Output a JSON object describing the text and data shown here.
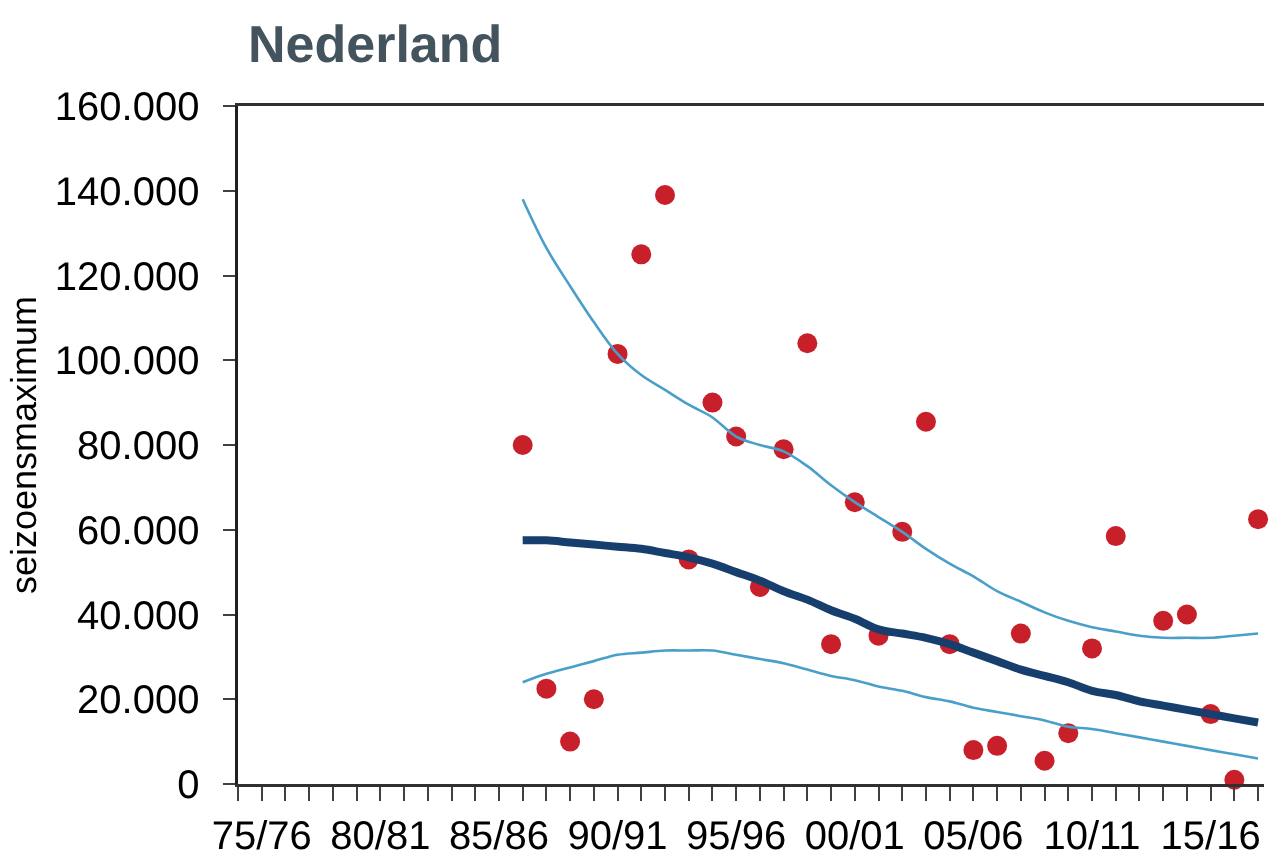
{
  "chart_data": {
    "type": "line",
    "title": "Nederland",
    "ylabel": "seizoensmaximum",
    "categories": [
      null,
      "75/76",
      null,
      null,
      null,
      null,
      "80/81",
      null,
      null,
      null,
      null,
      "85/86",
      null,
      null,
      null,
      null,
      "90/91",
      null,
      null,
      null,
      null,
      "95/96",
      null,
      null,
      null,
      null,
      "00/01",
      null,
      null,
      null,
      null,
      "05/06",
      null,
      null,
      null,
      null,
      "10/11",
      null,
      null,
      null,
      null,
      "15/16",
      null,
      null
    ],
    "series": [
      {
        "type": "scatter",
        "marker": "circle",
        "color": "#c8202a",
        "values": [
          null,
          null,
          null,
          null,
          null,
          null,
          null,
          null,
          null,
          null,
          null,
          null,
          80000,
          22500,
          10000,
          20000,
          101500,
          125000,
          139000,
          53000,
          90000,
          82000,
          46500,
          79000,
          104000,
          33000,
          66500,
          35000,
          59500,
          85500,
          33000,
          8000,
          9000,
          35500,
          5500,
          12000,
          32000,
          58500,
          null,
          38500,
          40000,
          16500,
          1000,
          62500
        ]
      },
      {
        "color": "#173f6d",
        "values": [
          null,
          null,
          null,
          null,
          null,
          null,
          null,
          null,
          null,
          null,
          null,
          null,
          57500,
          57500,
          57000,
          56500,
          56000,
          55500,
          54500,
          53500,
          52000,
          50000,
          48000,
          45500,
          43500,
          41000,
          39000,
          36500,
          35500,
          34500,
          33000,
          31000,
          29000,
          27000,
          25500,
          24000,
          22000,
          21000,
          19500,
          18500,
          17500,
          16500,
          15500,
          14500
        ]
      },
      {
        "color": "#4a9fca",
        "values": [
          null,
          null,
          null,
          null,
          null,
          null,
          null,
          null,
          null,
          null,
          null,
          null,
          138000,
          126500,
          117500,
          109000,
          101500,
          96500,
          93000,
          89500,
          86500,
          82000,
          80000,
          78500,
          75000,
          70500,
          66500,
          63000,
          59500,
          55500,
          52000,
          49000,
          45500,
          43000,
          40500,
          38500,
          37000,
          36000,
          35000,
          34500,
          34500,
          34500,
          35000,
          35500
        ]
      },
      {
        "color": "#4a9fca",
        "values": [
          null,
          null,
          null,
          null,
          null,
          null,
          null,
          null,
          null,
          null,
          null,
          null,
          24000,
          26000,
          27500,
          29000,
          30500,
          31000,
          31500,
          31500,
          31500,
          30500,
          29500,
          28500,
          27000,
          25500,
          24500,
          23000,
          22000,
          20500,
          19500,
          18000,
          17000,
          16000,
          15000,
          13500,
          13000,
          12000,
          11000,
          10000,
          9000,
          8000,
          7000,
          6000
        ]
      }
    ],
    "ylim": [
      0,
      160000
    ],
    "yticks": [
      0,
      {
        "value": 20000,
        "label": "20.000"
      },
      {
        "value": 40000,
        "label": "40.000"
      },
      {
        "value": 60000,
        "label": "60.000"
      },
      {
        "value": 80000,
        "label": "80.000"
      },
      {
        "value": 100000,
        "label": "100.000"
      },
      {
        "value": 120000,
        "label": "120.000"
      },
      {
        "value": 140000,
        "label": "140.000"
      },
      {
        "value": 160000,
        "label": "160.000"
      }
    ],
    "grid": false
  }
}
